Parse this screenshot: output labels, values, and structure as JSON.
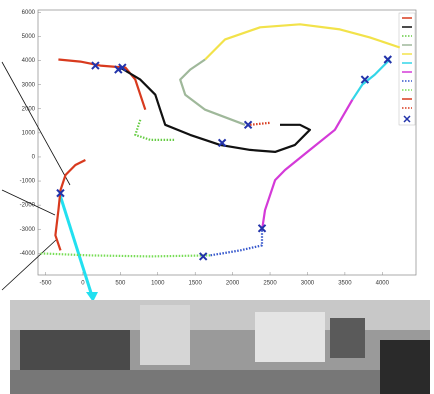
{
  "chart_data": {
    "type": "line",
    "xlim": [
      -600,
      4450
    ],
    "ylim": [
      -4900,
      6100
    ],
    "xticks": [
      -500,
      0,
      500,
      1000,
      1500,
      2000,
      2500,
      3000,
      3500,
      4000
    ],
    "yticks": [
      6000,
      5000,
      4000,
      3000,
      2000,
      1000,
      0,
      -1000,
      -2000,
      -3000,
      -4000
    ],
    "grid": false,
    "series": [
      {
        "color": "#d83a1e",
        "dash": false,
        "x": [
          -327,
          -33,
          233,
          567,
          700,
          767,
          833
        ],
        "values": [
          4045,
          3960,
          3794,
          3711,
          3211,
          2585,
          1960
        ]
      },
      {
        "color": "#111111",
        "dash": false,
        "x": [
          500,
          767,
          967,
          1033,
          1100,
          1433,
          1833,
          2233,
          2567,
          2833,
          3033,
          2900,
          2633
        ],
        "values": [
          3711,
          3211,
          2585,
          1960,
          1334,
          917,
          500,
          292,
          209,
          500,
          1126,
          1334,
          1334
        ]
      },
      {
        "color": "#66cc44",
        "dash": true,
        "x": [
          767,
          700,
          900,
          1233
        ],
        "values": [
          1543,
          917,
          709,
          709
        ]
      },
      {
        "color": "#9fb89a",
        "dash": false,
        "x": [
          2167,
          1633,
          1367,
          1300,
          1433,
          1633
        ],
        "values": [
          1334,
          1960,
          2585,
          3211,
          3628,
          4045
        ]
      },
      {
        "color": "#f2e24a",
        "dash": false,
        "x": [
          1633,
          1900,
          2367,
          2900,
          3433,
          3833,
          4233
        ],
        "values": [
          4045,
          4879,
          5380,
          5505,
          5296,
          4962,
          4545
        ]
      },
      {
        "color": "#33d6e8",
        "dash": false,
        "x": [
          4100,
          3900,
          3733,
          3600
        ],
        "values": [
          4045,
          3420,
          3002,
          2377
        ]
      },
      {
        "color": "#d43ad8",
        "dash": false,
        "x": [
          3600,
          3367,
          3033,
          2700,
          2567,
          2433,
          2393
        ],
        "values": [
          2377,
          1126,
          292,
          -542,
          -959,
          -2210,
          -3044
        ]
      },
      {
        "color": "#3355cc",
        "dash": true,
        "x": [
          2393,
          2393,
          2100,
          1700
        ],
        "values": [
          -3044,
          -3670,
          -3878,
          -4087
        ]
      },
      {
        "color": "#77dd55",
        "dash": true,
        "x": [
          1700,
          900,
          100,
          -567
        ],
        "values": [
          -4087,
          -4128,
          -4087,
          -4003
        ]
      },
      {
        "color": "#d83a1e",
        "dash": false,
        "x": [
          -300,
          -367,
          -327,
          -300,
          -233,
          -100,
          33
        ],
        "values": [
          -3878,
          -3253,
          -2210,
          -1376,
          -751,
          -334,
          -125
        ]
      },
      {
        "color": "#d83a1e",
        "dash": true,
        "x": [
          2233,
          2500
        ],
        "values": [
          1334,
          1418
        ]
      }
    ],
    "markers": {
      "color": "#2233aa",
      "x": [
        167,
        473,
        527,
        2207,
        1860,
        -300,
        2393,
        1607,
        3767,
        4073
      ],
      "values": [
        3794,
        3628,
        3711,
        1334,
        584,
        -1501,
        -2961,
        -4128,
        3211,
        4045
      ]
    }
  }
}
